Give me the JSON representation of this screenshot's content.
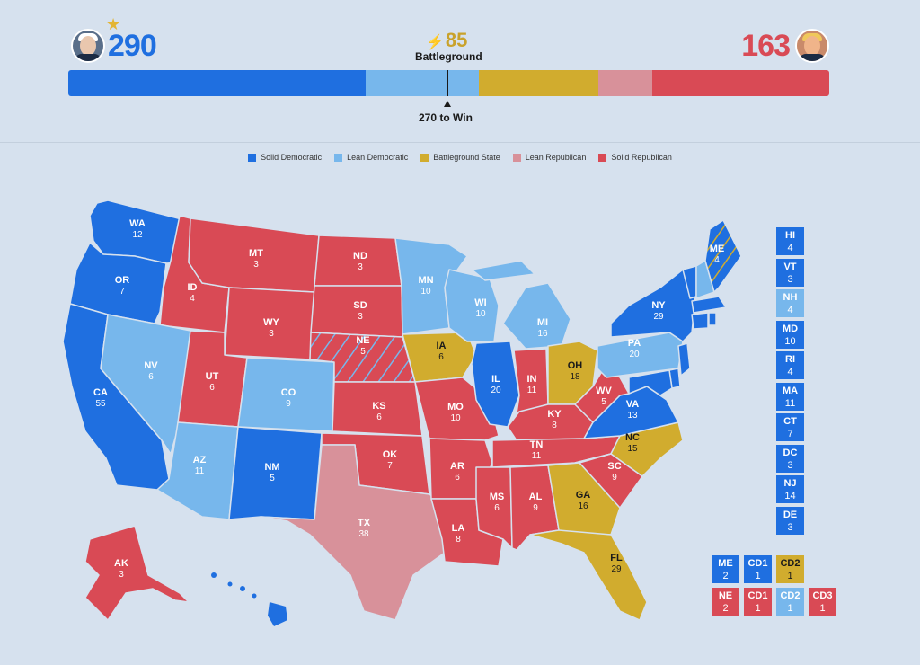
{
  "colors": {
    "solid_dem": "#1f6fe0",
    "lean_dem": "#77b7ec",
    "battleground": "#d1ac2e",
    "lean_rep": "#d8919a",
    "solid_rep": "#d94a55"
  },
  "header": {
    "dem_ev": "290",
    "rep_ev": "163",
    "battleground_ev": "85",
    "battleground_label": "Battleground",
    "to_win_label": "270 to Win",
    "dem_icon": "candidate-photo-democrat",
    "rep_icon": "candidate-photo-republican",
    "winner_icon": "star-icon"
  },
  "legend": [
    {
      "label": "Solid Democratic",
      "color": "#1f6fe0"
    },
    {
      "label": "Lean Democratic",
      "color": "#77b7ec"
    },
    {
      "label": "Battleground State",
      "color": "#d1ac2e"
    },
    {
      "label": "Lean Republican",
      "color": "#d8919a"
    },
    {
      "label": "Solid Republican",
      "color": "#d94a55"
    }
  ],
  "chart_data": {
    "type": "stacked-bar",
    "total": 538,
    "threshold": 270,
    "segments": [
      {
        "name": "Solid Democratic",
        "value": 210
      },
      {
        "name": "Lean Democratic",
        "value": 80
      },
      {
        "name": "Battleground State",
        "value": 85
      },
      {
        "name": "Lean Republican",
        "value": 38
      },
      {
        "name": "Solid Republican",
        "value": 125
      }
    ]
  },
  "states": [
    {
      "abbr": "WA",
      "ev": "12",
      "rating": "solid_dem"
    },
    {
      "abbr": "OR",
      "ev": "7",
      "rating": "solid_dem"
    },
    {
      "abbr": "CA",
      "ev": "55",
      "rating": "solid_dem"
    },
    {
      "abbr": "ID",
      "ev": "4",
      "rating": "solid_rep"
    },
    {
      "abbr": "NV",
      "ev": "6",
      "rating": "lean_dem"
    },
    {
      "abbr": "MT",
      "ev": "3",
      "rating": "solid_rep"
    },
    {
      "abbr": "WY",
      "ev": "3",
      "rating": "solid_rep"
    },
    {
      "abbr": "UT",
      "ev": "6",
      "rating": "solid_rep"
    },
    {
      "abbr": "AZ",
      "ev": "11",
      "rating": "lean_dem"
    },
    {
      "abbr": "CO",
      "ev": "9",
      "rating": "lean_dem"
    },
    {
      "abbr": "NM",
      "ev": "5",
      "rating": "solid_dem"
    },
    {
      "abbr": "ND",
      "ev": "3",
      "rating": "solid_rep"
    },
    {
      "abbr": "SD",
      "ev": "3",
      "rating": "solid_rep"
    },
    {
      "abbr": "NE",
      "ev": "5",
      "rating": "solid_rep"
    },
    {
      "abbr": "KS",
      "ev": "6",
      "rating": "solid_rep"
    },
    {
      "abbr": "OK",
      "ev": "7",
      "rating": "solid_rep"
    },
    {
      "abbr": "TX",
      "ev": "38",
      "rating": "lean_rep"
    },
    {
      "abbr": "MN",
      "ev": "10",
      "rating": "lean_dem"
    },
    {
      "abbr": "IA",
      "ev": "6",
      "rating": "battleground"
    },
    {
      "abbr": "MO",
      "ev": "10",
      "rating": "solid_rep"
    },
    {
      "abbr": "AR",
      "ev": "6",
      "rating": "solid_rep"
    },
    {
      "abbr": "LA",
      "ev": "8",
      "rating": "solid_rep"
    },
    {
      "abbr": "WI",
      "ev": "10",
      "rating": "lean_dem"
    },
    {
      "abbr": "IL",
      "ev": "20",
      "rating": "solid_dem"
    },
    {
      "abbr": "MI",
      "ev": "16",
      "rating": "lean_dem"
    },
    {
      "abbr": "IN",
      "ev": "11",
      "rating": "solid_rep"
    },
    {
      "abbr": "OH",
      "ev": "18",
      "rating": "battleground"
    },
    {
      "abbr": "KY",
      "ev": "8",
      "rating": "solid_rep"
    },
    {
      "abbr": "TN",
      "ev": "11",
      "rating": "solid_rep"
    },
    {
      "abbr": "MS",
      "ev": "6",
      "rating": "solid_rep"
    },
    {
      "abbr": "AL",
      "ev": "9",
      "rating": "solid_rep"
    },
    {
      "abbr": "GA",
      "ev": "16",
      "rating": "battleground"
    },
    {
      "abbr": "FL",
      "ev": "29",
      "rating": "battleground"
    },
    {
      "abbr": "SC",
      "ev": "9",
      "rating": "solid_rep"
    },
    {
      "abbr": "NC",
      "ev": "15",
      "rating": "battleground"
    },
    {
      "abbr": "VA",
      "ev": "13",
      "rating": "solid_dem"
    },
    {
      "abbr": "WV",
      "ev": "5",
      "rating": "solid_rep"
    },
    {
      "abbr": "PA",
      "ev": "20",
      "rating": "lean_dem"
    },
    {
      "abbr": "NY",
      "ev": "29",
      "rating": "solid_dem"
    },
    {
      "abbr": "ME",
      "ev": "4",
      "rating": "solid_dem"
    },
    {
      "abbr": "AK",
      "ev": "3",
      "rating": "solid_rep"
    }
  ],
  "small_states": [
    {
      "abbr": "HI",
      "ev": "4",
      "rating": "solid_dem"
    },
    {
      "abbr": "VT",
      "ev": "3",
      "rating": "solid_dem"
    },
    {
      "abbr": "NH",
      "ev": "4",
      "rating": "lean_dem"
    },
    {
      "abbr": "MD",
      "ev": "10",
      "rating": "solid_dem"
    },
    {
      "abbr": "RI",
      "ev": "4",
      "rating": "solid_dem"
    },
    {
      "abbr": "MA",
      "ev": "11",
      "rating": "solid_dem"
    },
    {
      "abbr": "CT",
      "ev": "7",
      "rating": "solid_dem"
    },
    {
      "abbr": "DC",
      "ev": "3",
      "rating": "solid_dem"
    },
    {
      "abbr": "NJ",
      "ev": "14",
      "rating": "solid_dem"
    },
    {
      "abbr": "DE",
      "ev": "3",
      "rating": "solid_dem"
    }
  ],
  "districts": [
    [
      {
        "abbr": "ME",
        "ev": "2",
        "rating": "solid_dem"
      },
      {
        "abbr": "CD1",
        "ev": "1",
        "rating": "solid_dem"
      },
      {
        "abbr": "CD2",
        "ev": "1",
        "rating": "battleground"
      }
    ],
    [
      {
        "abbr": "NE",
        "ev": "2",
        "rating": "solid_rep"
      },
      {
        "abbr": "CD1",
        "ev": "1",
        "rating": "solid_rep"
      },
      {
        "abbr": "CD2",
        "ev": "1",
        "rating": "lean_dem"
      },
      {
        "abbr": "CD3",
        "ev": "1",
        "rating": "solid_rep"
      }
    ]
  ]
}
